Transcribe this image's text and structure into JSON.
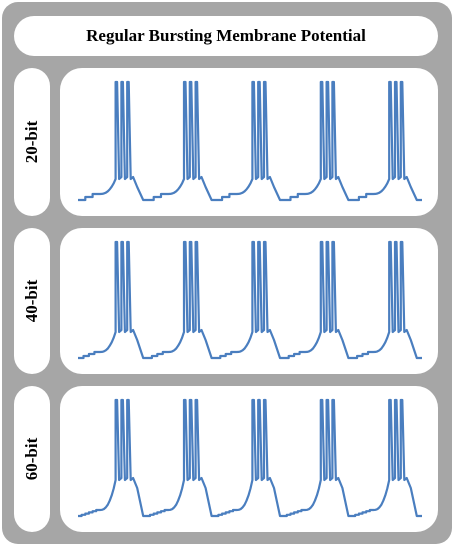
{
  "title": "Regular Bursting Membrane Potential",
  "line_color": "#4a7ebf",
  "panels": [
    {
      "label": "20-bit"
    },
    {
      "label": "40-bit"
    },
    {
      "label": "60-bit"
    }
  ],
  "chart_data": [
    {
      "type": "line",
      "name": "20-bit",
      "bursts": 5,
      "spikes_per_burst": 3,
      "title": "",
      "xlabel": "",
      "ylabel": "",
      "grid": false
    },
    {
      "type": "line",
      "name": "40-bit",
      "bursts": 5,
      "spikes_per_burst": 3,
      "title": "",
      "xlabel": "",
      "ylabel": "",
      "grid": false
    },
    {
      "type": "line",
      "name": "60-bit",
      "bursts": 5,
      "spikes_per_burst": 3,
      "title": "",
      "xlabel": "",
      "ylabel": "",
      "grid": false
    }
  ]
}
